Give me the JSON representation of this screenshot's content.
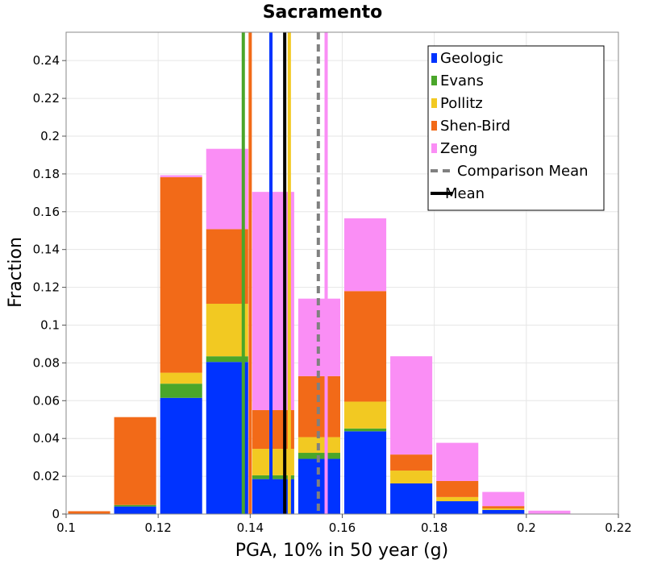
{
  "chart_data": {
    "type": "bar",
    "stacked": true,
    "title": "Sacramento",
    "xlabel": "PGA, 10% in 50 year (g)",
    "ylabel": "Fraction",
    "xlim": [
      0.1,
      0.22
    ],
    "ylim": [
      0,
      0.255
    ],
    "grid": true,
    "legend_position": "top-right",
    "x_ticks": [
      "0.1",
      "0.12",
      "0.14",
      "0.16",
      "0.18",
      "0.2",
      "0.22"
    ],
    "y_ticks": [
      "0",
      "0.02",
      "0.04",
      "0.06",
      "0.08",
      "0.1",
      "0.12",
      "0.14",
      "0.16",
      "0.18",
      "0.2",
      "0.22",
      "0.24"
    ],
    "bin_centers": [
      0.105,
      0.115,
      0.125,
      0.135,
      0.145,
      0.155,
      0.165,
      0.175,
      0.185,
      0.195,
      0.205
    ],
    "bin_width": 0.01,
    "series": [
      {
        "name": "Geologic",
        "color": "#0033ff",
        "values": [
          0.0,
          0.004,
          0.0615,
          0.0805,
          0.0185,
          0.0292,
          0.0438,
          0.0162,
          0.0068,
          0.0022,
          0.0
        ]
      },
      {
        "name": "Evans",
        "color": "#4aa62a",
        "values": [
          0.0,
          0.0008,
          0.0075,
          0.003,
          0.002,
          0.0032,
          0.0015,
          0.0,
          0.0,
          0.0,
          0.0
        ]
      },
      {
        "name": "Pollitz",
        "color": "#f2c922",
        "values": [
          0.0,
          0.0,
          0.0058,
          0.0278,
          0.014,
          0.0083,
          0.0142,
          0.0068,
          0.0022,
          0.0008,
          0.0
        ]
      },
      {
        "name": "Shen-Bird",
        "color": "#f26a18",
        "values": [
          0.0015,
          0.0465,
          0.1035,
          0.0395,
          0.0205,
          0.0323,
          0.0585,
          0.0085,
          0.0085,
          0.0012,
          0.0
        ]
      },
      {
        "name": "Zeng",
        "color": "#fa8ef5",
        "values": [
          0.0,
          0.0,
          0.001,
          0.0425,
          0.1155,
          0.041,
          0.0385,
          0.052,
          0.0202,
          0.0075,
          0.0018
        ]
      }
    ],
    "vertical_lines": [
      {
        "series": "Evans",
        "x": 0.1385,
        "color": "#4aa62a",
        "style": "solid"
      },
      {
        "series": "Shen-Bird",
        "x": 0.14,
        "color": "#f26a18",
        "style": "solid"
      },
      {
        "series": "Geologic",
        "x": 0.1445,
        "color": "#0033ff",
        "style": "solid"
      },
      {
        "series": "Mean",
        "x": 0.1475,
        "color": "#000000",
        "style": "solid"
      },
      {
        "series": "Pollitz",
        "x": 0.1485,
        "color": "#f2c922",
        "style": "solid"
      },
      {
        "series": "Comparison Mean",
        "x": 0.1548,
        "color": "#808080",
        "style": "dashed"
      },
      {
        "series": "Zeng",
        "x": 0.1565,
        "color": "#fa8ef5",
        "style": "solid"
      }
    ],
    "legend": [
      {
        "label": "Geologic",
        "color": "#0033ff",
        "kind": "box"
      },
      {
        "label": "Evans",
        "color": "#4aa62a",
        "kind": "box"
      },
      {
        "label": "Pollitz",
        "color": "#f2c922",
        "kind": "box"
      },
      {
        "label": "Shen-Bird",
        "color": "#f26a18",
        "kind": "box"
      },
      {
        "label": "Zeng",
        "color": "#fa8ef5",
        "kind": "box"
      },
      {
        "label": "Comparison Mean",
        "color": "#808080",
        "kind": "dashed"
      },
      {
        "label": "Mean",
        "color": "#000000",
        "kind": "line"
      }
    ]
  }
}
